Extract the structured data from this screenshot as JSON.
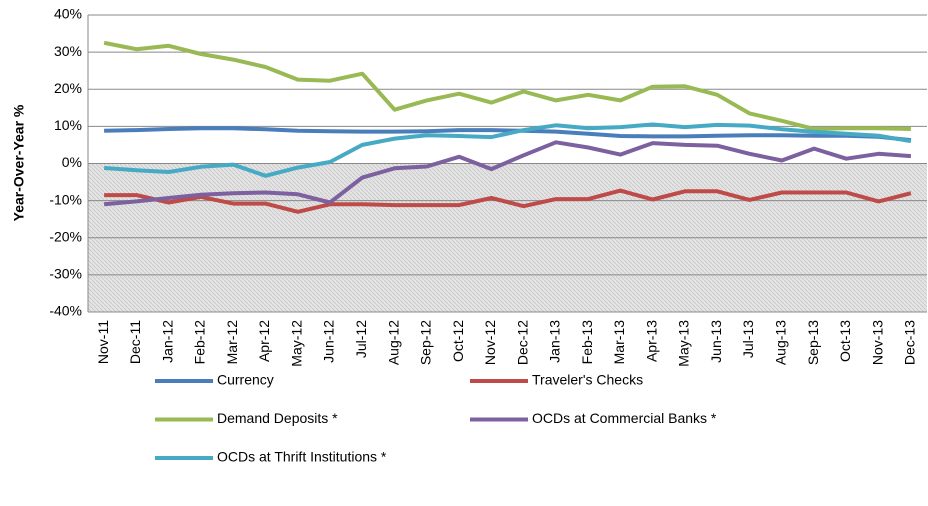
{
  "chart_data": {
    "type": "line",
    "ylabel": "Year-Over-Year %",
    "categories": [
      "Nov-11",
      "Dec-11",
      "Jan-12",
      "Feb-12",
      "Mar-12",
      "Apr-12",
      "May-12",
      "Jun-12",
      "Jul-12",
      "Aug-12",
      "Sep-12",
      "Oct-12",
      "Nov-12",
      "Dec-12",
      "Jan-13",
      "Feb-13",
      "Mar-13",
      "Apr-13",
      "May-13",
      "Jun-13",
      "Jul-13",
      "Aug-13",
      "Sep-13",
      "Oct-13",
      "Nov-13",
      "Dec-13"
    ],
    "series": [
      {
        "name": "Currency",
        "color": "#4a7ebb",
        "values": [
          8.8,
          9.0,
          9.3,
          9.5,
          9.5,
          9.2,
          8.8,
          8.7,
          8.6,
          8.6,
          8.7,
          9.0,
          9.0,
          8.8,
          8.6,
          8.0,
          7.4,
          7.3,
          7.3,
          7.5,
          7.6,
          7.6,
          7.5,
          7.5,
          7.2,
          6.3
        ]
      },
      {
        "name": "Traveler's Checks",
        "color": "#be4b48",
        "values": [
          -8.5,
          -8.5,
          -10.5,
          -9,
          -10.8,
          -10.8,
          -13,
          -11,
          -11,
          -11.2,
          -11.2,
          -11.2,
          -9.3,
          -11.5,
          -9.6,
          -9.6,
          -7.3,
          -9.7,
          -7.5,
          -7.5,
          -9.8,
          -7.8,
          -7.8,
          -7.8,
          -10.2,
          -8
        ]
      },
      {
        "name": "Demand Deposits *",
        "color": "#98b954",
        "values": [
          32.5,
          30.8,
          31.7,
          29.5,
          28,
          26,
          22.6,
          22.3,
          24.2,
          14.5,
          17,
          18.8,
          16.4,
          19.4,
          17,
          18.5,
          17,
          20.7,
          20.8,
          18.5,
          13.5,
          11.5,
          9.3,
          9.5,
          9.5,
          9.3
        ]
      },
      {
        "name": "OCDs at Commercial Banks *",
        "color": "#7d60a0",
        "values": [
          -11,
          -10.2,
          -9.3,
          -8.4,
          -8,
          -7.8,
          -8.3,
          -10.5,
          -3.8,
          -1.3,
          -0.8,
          1.8,
          -1.5,
          2.2,
          5.7,
          4.3,
          2.4,
          5.5,
          5,
          4.8,
          2.6,
          0.8,
          4,
          1.3,
          2.6,
          2
        ]
      },
      {
        "name": "OCDs at Thrift Institutions *",
        "color": "#46aac5",
        "values": [
          -1.2,
          -1.8,
          -2.3,
          -0.9,
          -0.3,
          -3.3,
          -1.1,
          0.4,
          5,
          6.7,
          7.6,
          7.4,
          7.1,
          9,
          10.3,
          9.5,
          9.8,
          10.5,
          9.8,
          10.4,
          10.2,
          9.2,
          8.5,
          8,
          7.5,
          6
        ]
      }
    ],
    "ylim": [
      -40,
      40
    ],
    "yticks": [
      {
        "value": -40,
        "label": "-40%"
      },
      {
        "value": -30,
        "label": "-30%"
      },
      {
        "value": -20,
        "label": "-20%"
      },
      {
        "value": -10,
        "label": "-10%"
      },
      {
        "value": 0,
        "label": "0%"
      },
      {
        "value": 10,
        "label": "10%"
      },
      {
        "value": 20,
        "label": "20%"
      },
      {
        "value": 30,
        "label": "30%"
      },
      {
        "value": 40,
        "label": "40%"
      }
    ],
    "grid": true
  }
}
